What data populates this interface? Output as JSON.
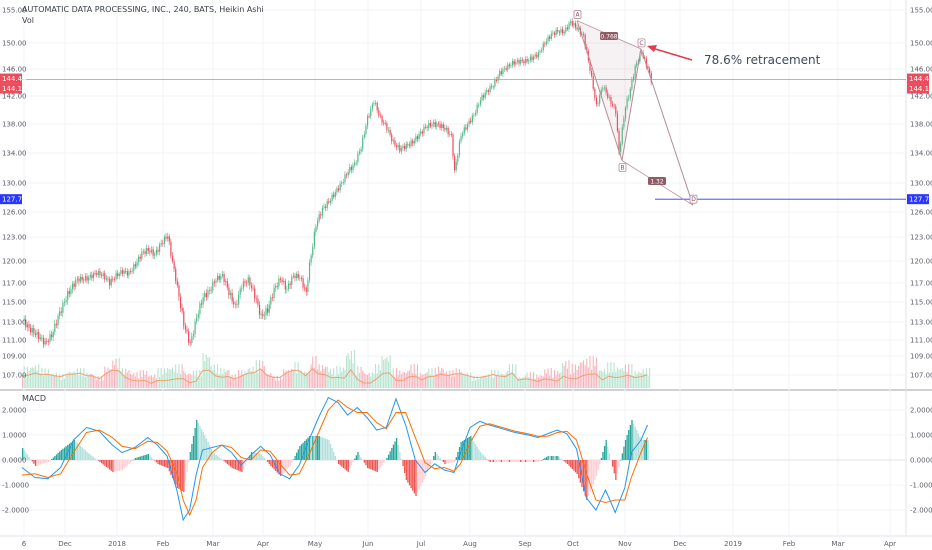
{
  "header": {
    "title": "AUTOMATIC DATA PROCESSING, INC., 240, BATS, Heikin Ashi",
    "volume_label": "Vol",
    "macd_label": "MACD"
  },
  "annotation": {
    "text": "78.6% retracement"
  },
  "colors": {
    "up": "#53b987",
    "down": "#eb4d5c",
    "vol_up": "#b7e4cf",
    "vol_down": "#f6b5bd",
    "macd_line": "#2196f3",
    "signal_line": "#ff6d00",
    "pattern": "#b78c96",
    "price_line": "#f4787f",
    "target_line": "#2a36ff",
    "arrow": "#e23b4c"
  },
  "chart_data": [
    {
      "type": "line",
      "panel": "price",
      "title": "AUTOMATIC DATA PROCESSING, INC., 240, BATS, Heikin Ashi",
      "xlabel": "",
      "ylabel": "",
      "ylim": [
        105.5,
        155.5
      ],
      "x_tick_labels": [
        "6",
        "Dec",
        "2018",
        "Feb",
        "Mar",
        "Apr",
        "May",
        "Jun",
        "Jul",
        "Aug",
        "Sep",
        "Oct",
        "Nov",
        "Dec",
        "2019",
        "Feb",
        "Mar",
        "Apr"
      ],
      "y_tick_labels": [
        "155.00",
        "150.00",
        "146.00",
        "142.00",
        "138.00",
        "134.00",
        "130.00",
        "126.00",
        "123.00",
        "120.00",
        "117.00",
        "115.00",
        "113.00",
        "111.00",
        "109.00",
        "107.00"
      ],
      "y_ticks": [
        155,
        150,
        146,
        142,
        138,
        134,
        130,
        126,
        123,
        120,
        117,
        115,
        113,
        111,
        109,
        107
      ],
      "price_path": [
        [
          0,
          113.2
        ],
        [
          4,
          112.3
        ],
        [
          10,
          111.4
        ],
        [
          14,
          110.6
        ],
        [
          18,
          111.5
        ],
        [
          22,
          113.5
        ],
        [
          28,
          115.8
        ],
        [
          34,
          117.5
        ],
        [
          40,
          117.6
        ],
        [
          46,
          118.4
        ],
        [
          50,
          118.0
        ],
        [
          54,
          117.1
        ],
        [
          58,
          118.0
        ],
        [
          62,
          118.6
        ],
        [
          66,
          118.3
        ],
        [
          70,
          119.5
        ],
        [
          74,
          121.0
        ],
        [
          78,
          121.4
        ],
        [
          82,
          120.8
        ],
        [
          86,
          122.2
        ],
        [
          90,
          123.2
        ],
        [
          92,
          121.0
        ],
        [
          96,
          116.5
        ],
        [
          100,
          112.8
        ],
        [
          104,
          110.5
        ],
        [
          108,
          113.5
        ],
        [
          112,
          115.5
        ],
        [
          116,
          116.2
        ],
        [
          120,
          117.5
        ],
        [
          124,
          118.0
        ],
        [
          128,
          116.0
        ],
        [
          132,
          114.5
        ],
        [
          136,
          116.8
        ],
        [
          140,
          117.4
        ],
        [
          144,
          115.7
        ],
        [
          148,
          113.5
        ],
        [
          152,
          114.2
        ],
        [
          156,
          116.3
        ],
        [
          160,
          117.6
        ],
        [
          164,
          116.3
        ],
        [
          168,
          118.0
        ],
        [
          172,
          117.8
        ],
        [
          176,
          115.9
        ],
        [
          178,
          119.5
        ],
        [
          182,
          124.5
        ],
        [
          186,
          126.4
        ],
        [
          190,
          127.4
        ],
        [
          194,
          128.7
        ],
        [
          198,
          130.0
        ],
        [
          202,
          131.6
        ],
        [
          206,
          132.5
        ],
        [
          210,
          134.8
        ],
        [
          214,
          138.8
        ],
        [
          218,
          141.3
        ],
        [
          222,
          138.8
        ],
        [
          226,
          137.5
        ],
        [
          230,
          135.4
        ],
        [
          234,
          134.5
        ],
        [
          238,
          135.0
        ],
        [
          242,
          135.5
        ],
        [
          246,
          136.5
        ],
        [
          250,
          137.6
        ],
        [
          254,
          138.0
        ],
        [
          258,
          137.9
        ],
        [
          262,
          137.4
        ],
        [
          266,
          136.3
        ],
        [
          268,
          131.5
        ],
        [
          272,
          136.5
        ],
        [
          276,
          137.9
        ],
        [
          280,
          139.3
        ],
        [
          284,
          141.5
        ],
        [
          288,
          142.7
        ],
        [
          292,
          143.6
        ],
        [
          296,
          145.4
        ],
        [
          300,
          146.2
        ],
        [
          304,
          146.9
        ],
        [
          308,
          147.2
        ],
        [
          312,
          147.2
        ],
        [
          316,
          147.7
        ],
        [
          320,
          148.3
        ],
        [
          324,
          150.0
        ],
        [
          328,
          151.3
        ],
        [
          332,
          151.8
        ],
        [
          336,
          151.7
        ],
        [
          340,
          153.2
        ],
        [
          344,
          152.2
        ],
        [
          348,
          151.0
        ],
        [
          352,
          146.0
        ],
        [
          356,
          140.5
        ],
        [
          360,
          143.5
        ],
        [
          364,
          141.5
        ],
        [
          368,
          139.8
        ],
        [
          370,
          134.0
        ],
        [
          374,
          140.5
        ],
        [
          376,
          142.0
        ],
        [
          380,
          146.3
        ],
        [
          384,
          148.6
        ],
        [
          388,
          146.0
        ],
        [
          390,
          144.4
        ]
      ],
      "last_price": 144.44,
      "prev_price": 144.15,
      "target_level": 127.77,
      "pattern_points": [
        {
          "label": "A",
          "value": 153.4
        },
        {
          "label": "B",
          "value": 133.0
        },
        {
          "label": "C",
          "value": 149.1
        },
        {
          "label": "D",
          "value": 127.77
        }
      ],
      "ratio_labels": [
        "0.768",
        "1.32"
      ]
    },
    {
      "type": "bar",
      "panel": "volume",
      "series": [
        {
          "name": "Vol",
          "values": [
            0.55,
            0.6,
            0.5,
            0.4,
            0.35,
            0.45,
            0.5,
            0.4,
            0.3,
            0.55,
            0.75,
            0.5,
            0.4,
            0.45,
            0.35,
            0.5,
            0.55,
            0.6,
            0.4,
            0.45,
            0.9,
            0.6,
            0.5,
            0.35,
            0.45,
            0.55,
            0.7,
            0.4,
            0.3,
            0.5,
            0.65,
            0.45,
            0.8,
            0.6,
            0.5,
            0.55,
            0.95,
            0.55,
            0.4,
            0.6,
            0.85,
            0.5,
            0.45,
            0.6,
            0.4,
            0.5,
            0.55,
            0.45,
            0.5,
            0.4,
            0.3,
            0.35,
            0.45,
            0.4,
            0.6,
            0.3,
            0.4,
            0.35,
            0.5,
            0.45,
            0.7,
            0.6,
            0.75,
            0.8,
            0.5,
            0.65,
            0.55,
            0.6,
            0.45,
            0.5
          ]
        }
      ]
    },
    {
      "type": "line",
      "panel": "macd",
      "title": "MACD",
      "ylim": [
        -2.6,
        2.4
      ],
      "y_tick_labels": [
        "2.0000",
        "1.0000",
        "0.0000",
        "-1.0000",
        "-2.0000"
      ],
      "y_ticks": [
        2,
        1,
        0,
        -1,
        -2
      ],
      "series": [
        {
          "name": "MACD",
          "values": [
            [
              0,
              -0.3
            ],
            [
              8,
              -0.7
            ],
            [
              16,
              -0.75
            ],
            [
              24,
              -0.3
            ],
            [
              32,
              0.8
            ],
            [
              40,
              1.3
            ],
            [
              48,
              1.15
            ],
            [
              56,
              0.6
            ],
            [
              62,
              0.3
            ],
            [
              70,
              0.5
            ],
            [
              78,
              0.9
            ],
            [
              84,
              0.6
            ],
            [
              90,
              0.15
            ],
            [
              96,
              -1.2
            ],
            [
              100,
              -2.4
            ],
            [
              104,
              -2.0
            ],
            [
              108,
              -0.6
            ],
            [
              112,
              0.4
            ],
            [
              118,
              0.5
            ],
            [
              124,
              0.6
            ],
            [
              130,
              0.3
            ],
            [
              136,
              -0.2
            ],
            [
              142,
              0.2
            ],
            [
              148,
              0.55
            ],
            [
              154,
              0.2
            ],
            [
              160,
              -0.55
            ],
            [
              166,
              -0.75
            ],
            [
              172,
              -0.2
            ],
            [
              178,
              0.8
            ],
            [
              184,
              1.7
            ],
            [
              190,
              2.5
            ],
            [
              196,
              2.3
            ],
            [
              202,
              1.8
            ],
            [
              208,
              2.1
            ],
            [
              214,
              1.7
            ],
            [
              220,
              1.2
            ],
            [
              226,
              1.3
            ],
            [
              232,
              2.45
            ],
            [
              238,
              1.4
            ],
            [
              244,
              0.0
            ],
            [
              250,
              -0.5
            ],
            [
              256,
              -0.15
            ],
            [
              262,
              -0.4
            ],
            [
              268,
              -0.5
            ],
            [
              272,
              0.3
            ],
            [
              278,
              1.3
            ],
            [
              284,
              1.55
            ],
            [
              290,
              1.4
            ],
            [
              298,
              1.25
            ],
            [
              306,
              1.1
            ],
            [
              314,
              1.0
            ],
            [
              320,
              0.9
            ],
            [
              326,
              1.05
            ],
            [
              332,
              1.2
            ],
            [
              338,
              1.05
            ],
            [
              344,
              0.45
            ],
            [
              350,
              -1.5
            ],
            [
              356,
              -2.0
            ],
            [
              362,
              -1.2
            ],
            [
              368,
              -2.1
            ],
            [
              374,
              -1.1
            ],
            [
              378,
              0.3
            ],
            [
              384,
              0.8
            ],
            [
              388,
              1.4
            ]
          ]
        },
        {
          "name": "Signal",
          "values": [
            [
              0,
              -0.6
            ],
            [
              8,
              -0.55
            ],
            [
              16,
              -0.7
            ],
            [
              24,
              -0.55
            ],
            [
              32,
              0.3
            ],
            [
              40,
              1.1
            ],
            [
              48,
              1.2
            ],
            [
              56,
              0.9
            ],
            [
              62,
              0.55
            ],
            [
              70,
              0.45
            ],
            [
              78,
              0.75
            ],
            [
              84,
              0.7
            ],
            [
              90,
              0.35
            ],
            [
              96,
              -0.5
            ],
            [
              100,
              -1.6
            ],
            [
              104,
              -2.2
            ],
            [
              108,
              -1.6
            ],
            [
              112,
              -0.3
            ],
            [
              118,
              0.3
            ],
            [
              124,
              0.6
            ],
            [
              130,
              0.5
            ],
            [
              136,
              0.1
            ],
            [
              142,
              0.0
            ],
            [
              148,
              0.4
            ],
            [
              154,
              0.35
            ],
            [
              160,
              -0.15
            ],
            [
              166,
              -0.6
            ],
            [
              172,
              -0.55
            ],
            [
              178,
              0.2
            ],
            [
              184,
              1.1
            ],
            [
              190,
              2.0
            ],
            [
              196,
              2.4
            ],
            [
              202,
              2.1
            ],
            [
              208,
              1.9
            ],
            [
              214,
              1.9
            ],
            [
              220,
              1.5
            ],
            [
              226,
              1.25
            ],
            [
              232,
              1.9
            ],
            [
              238,
              1.9
            ],
            [
              244,
              0.9
            ],
            [
              250,
              -0.1
            ],
            [
              256,
              -0.35
            ],
            [
              262,
              -0.3
            ],
            [
              268,
              -0.45
            ],
            [
              272,
              -0.15
            ],
            [
              278,
              0.7
            ],
            [
              284,
              1.35
            ],
            [
              290,
              1.45
            ],
            [
              298,
              1.3
            ],
            [
              306,
              1.15
            ],
            [
              314,
              1.05
            ],
            [
              320,
              0.95
            ],
            [
              326,
              0.95
            ],
            [
              332,
              1.1
            ],
            [
              338,
              1.15
            ],
            [
              344,
              0.8
            ],
            [
              350,
              -0.5
            ],
            [
              356,
              -1.6
            ],
            [
              362,
              -1.7
            ],
            [
              368,
              -1.6
            ],
            [
              374,
              -1.6
            ],
            [
              378,
              -0.7
            ],
            [
              384,
              0.3
            ],
            [
              388,
              0.9
            ]
          ]
        }
      ]
    }
  ]
}
